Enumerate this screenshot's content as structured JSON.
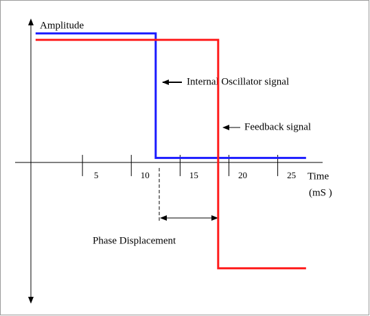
{
  "chart_data": {
    "type": "line",
    "annotations": [
      "Amplitude",
      "Time",
      "(mS )",
      "Internal Oscillator signal",
      "Feedback signal",
      "Phase Displacement"
    ],
    "xlim": [
      -1.9,
      29.6
    ],
    "ylim": [
      -1.09,
      1.1
    ],
    "xticks": [
      5,
      10,
      15,
      20,
      25
    ],
    "series": [
      {
        "color": "#1a1aff",
        "x": [
          0.2,
          12.5,
          12.5,
          27.9
        ],
        "values": [
          1,
          1,
          0.03,
          0.03
        ]
      },
      {
        "color": "#ff1a1a",
        "x": [
          0.2,
          18.9,
          18.9,
          27.9
        ],
        "values": [
          0.95,
          0.95,
          -0.83,
          -0.83
        ]
      }
    ]
  }
}
